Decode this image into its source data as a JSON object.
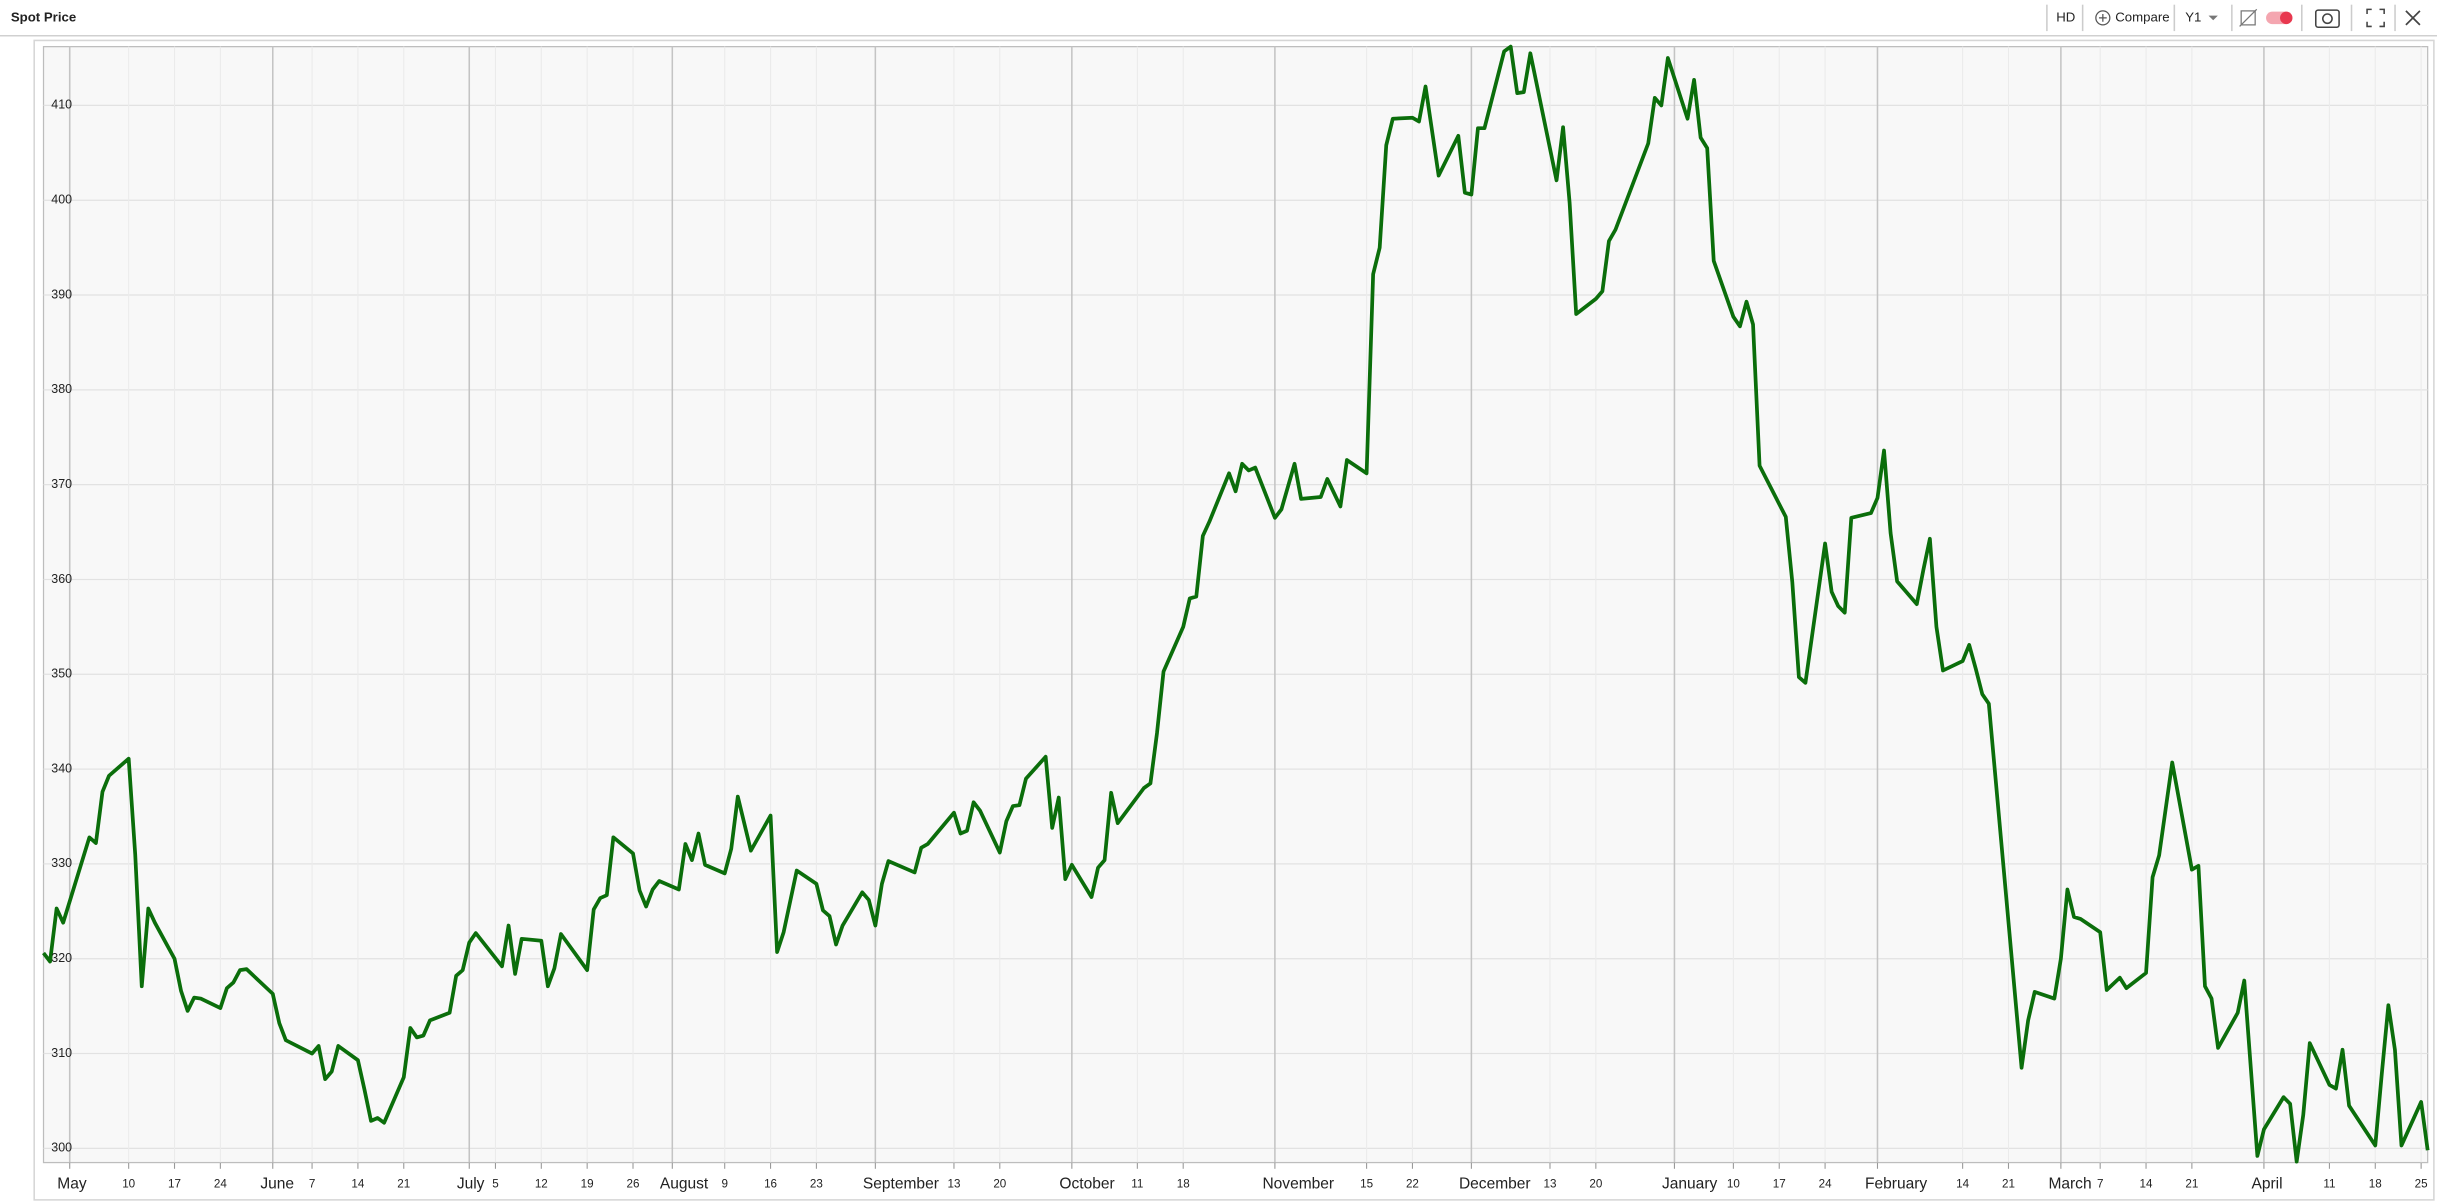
{
  "toolbar": {
    "hd": "HD",
    "compare": "Compare",
    "period": "Y1"
  },
  "chart_data": {
    "type": "line",
    "title": "Spot Price",
    "color": "#0b6e0b",
    "grid": true,
    "xlim": [
      "04-27",
      "04-26"
    ],
    "ylim": [
      298.5,
      416.2
    ],
    "yticks": [
      300,
      310,
      320,
      330,
      340,
      350,
      360,
      370,
      380,
      390,
      400,
      410
    ],
    "xticks": [
      {
        "value": "05-01",
        "label": "May"
      },
      {
        "value": "05-10",
        "label": "10"
      },
      {
        "value": "05-17",
        "label": "17"
      },
      {
        "value": "05-24",
        "label": "24"
      },
      {
        "value": "06-01",
        "label": "June"
      },
      {
        "value": "06-07",
        "label": "7"
      },
      {
        "value": "06-14",
        "label": "14"
      },
      {
        "value": "06-21",
        "label": "21"
      },
      {
        "value": "07-01",
        "label": "July"
      },
      {
        "value": "07-05",
        "label": "5"
      },
      {
        "value": "07-12",
        "label": "12"
      },
      {
        "value": "07-19",
        "label": "19"
      },
      {
        "value": "07-26",
        "label": "26"
      },
      {
        "value": "08-01",
        "label": "August"
      },
      {
        "value": "08-09",
        "label": "9"
      },
      {
        "value": "08-16",
        "label": "16"
      },
      {
        "value": "08-23",
        "label": "23"
      },
      {
        "value": "09-01",
        "label": "September"
      },
      {
        "value": "09-13",
        "label": "13"
      },
      {
        "value": "09-20",
        "label": "20"
      },
      {
        "value": "10-01",
        "label": "October"
      },
      {
        "value": "10-11",
        "label": "11"
      },
      {
        "value": "10-18",
        "label": "18"
      },
      {
        "value": "11-01",
        "label": "November"
      },
      {
        "value": "11-15",
        "label": "15"
      },
      {
        "value": "11-22",
        "label": "22"
      },
      {
        "value": "12-01",
        "label": "December"
      },
      {
        "value": "12-13",
        "label": "13"
      },
      {
        "value": "12-20",
        "label": "20"
      },
      {
        "value": "01-01",
        "label": "January"
      },
      {
        "value": "01-10",
        "label": "10"
      },
      {
        "value": "01-17",
        "label": "17"
      },
      {
        "value": "01-24",
        "label": "24"
      },
      {
        "value": "02-01",
        "label": "February"
      },
      {
        "value": "02-14",
        "label": "14"
      },
      {
        "value": "02-21",
        "label": "21"
      },
      {
        "value": "03-01",
        "label": "March"
      },
      {
        "value": "03-07",
        "label": "7"
      },
      {
        "value": "03-14",
        "label": "14"
      },
      {
        "value": "03-21",
        "label": "21"
      },
      {
        "value": "04-01",
        "label": "April"
      },
      {
        "value": "04-11",
        "label": "11"
      },
      {
        "value": "04-18",
        "label": "18"
      },
      {
        "value": "04-25",
        "label": "25"
      }
    ],
    "x": [
      "04-27",
      "04-28",
      "04-29",
      "04-30",
      "05-04",
      "05-05",
      "05-06",
      "05-07",
      "05-10",
      "05-11",
      "05-12",
      "05-13",
      "05-14",
      "05-17",
      "05-18",
      "05-19",
      "05-20",
      "05-21",
      "05-24",
      "05-25",
      "05-26",
      "05-27",
      "05-28",
      "06-01",
      "06-02",
      "06-03",
      "06-07",
      "06-08",
      "06-09",
      "06-10",
      "06-11",
      "06-14",
      "06-15",
      "06-16",
      "06-17",
      "06-18",
      "06-21",
      "06-22",
      "06-23",
      "06-24",
      "06-25",
      "06-28",
      "06-29",
      "06-30",
      "07-01",
      "07-02",
      "07-06",
      "07-07",
      "07-08",
      "07-09",
      "07-12",
      "07-13",
      "07-14",
      "07-15",
      "07-19",
      "07-20",
      "07-21",
      "07-22",
      "07-23",
      "07-26",
      "07-27",
      "07-28",
      "07-29",
      "07-30",
      "08-02",
      "08-03",
      "08-04",
      "08-05",
      "08-06",
      "08-09",
      "08-10",
      "08-11",
      "08-13",
      "08-16",
      "08-17",
      "08-18",
      "08-20",
      "08-23",
      "08-24",
      "08-25",
      "08-26",
      "08-27",
      "08-30",
      "08-31",
      "09-01",
      "09-02",
      "09-03",
      "09-07",
      "09-08",
      "09-09",
      "09-13",
      "09-14",
      "09-15",
      "09-16",
      "09-17",
      "09-20",
      "09-21",
      "09-22",
      "09-23",
      "09-24",
      "09-27",
      "09-28",
      "09-29",
      "09-30",
      "10-01",
      "10-04",
      "10-05",
      "10-06",
      "10-07",
      "10-08",
      "10-12",
      "10-13",
      "10-14",
      "10-15",
      "10-18",
      "10-19",
      "10-20",
      "10-21",
      "10-22",
      "10-25",
      "10-26",
      "10-27",
      "10-28",
      "10-29",
      "11-01",
      "11-02",
      "11-04",
      "11-05",
      "11-08",
      "11-09",
      "11-11",
      "11-12",
      "11-15",
      "11-16",
      "11-17",
      "11-18",
      "11-19",
      "11-22",
      "11-23",
      "11-24",
      "11-26",
      "11-29",
      "11-30",
      "12-01",
      "12-02",
      "12-03",
      "12-06",
      "12-07",
      "12-08",
      "12-09",
      "12-10",
      "12-14",
      "12-15",
      "12-16",
      "12-17",
      "12-20",
      "12-21",
      "12-22",
      "12-23",
      "12-28",
      "12-29",
      "12-30",
      "12-31",
      "01-03",
      "01-04",
      "01-05",
      "01-06",
      "01-07",
      "01-10",
      "01-11",
      "01-12",
      "01-13",
      "01-14",
      "01-18",
      "01-19",
      "01-20",
      "01-21",
      "01-24",
      "01-25",
      "01-26",
      "01-27",
      "01-28",
      "01-31",
      "02-01",
      "02-02",
      "02-03",
      "02-04",
      "02-07",
      "02-08",
      "02-09",
      "02-10",
      "02-11",
      "02-14",
      "02-15",
      "02-16",
      "02-17",
      "02-18",
      "02-23",
      "02-24",
      "02-25",
      "02-28",
      "03-01",
      "03-02",
      "03-03",
      "03-04",
      "03-07",
      "03-08",
      "03-10",
      "03-11",
      "03-14",
      "03-15",
      "03-16",
      "03-17",
      "03-18",
      "03-21",
      "03-22",
      "03-23",
      "03-24",
      "03-25",
      "03-28",
      "03-29",
      "03-31",
      "04-01",
      "04-04",
      "04-05",
      "04-06",
      "04-07",
      "04-08",
      "04-11",
      "04-12",
      "04-13",
      "04-14",
      "04-18",
      "04-19",
      "04-20",
      "04-21",
      "04-22",
      "04-25",
      "04-26"
    ],
    "values": [
      320.6,
      319.7,
      325.3,
      323.8,
      332.8,
      332.2,
      337.6,
      339.3,
      341.1,
      331,
      317.1,
      325.3,
      323.8,
      320,
      316.6,
      314.5,
      315.9,
      315.8,
      314.8,
      316.9,
      317.5,
      318.8,
      318.9,
      316.3,
      313.2,
      311.4,
      310,
      310.8,
      307.3,
      308.1,
      310.8,
      309.3,
      306.2,
      302.9,
      303.2,
      302.7,
      307.5,
      312.7,
      311.7,
      311.9,
      313.5,
      314.3,
      318.2,
      318.8,
      321.7,
      322.7,
      319.2,
      323.5,
      318.4,
      322.1,
      321.9,
      317.1,
      319,
      322.6,
      318.8,
      325.2,
      326.4,
      326.7,
      332.8,
      331.1,
      327.2,
      325.5,
      327.3,
      328.2,
      327.3,
      332.1,
      330.4,
      333.2,
      329.9,
      329,
      331.6,
      337.1,
      331.4,
      335.1,
      320.7,
      322.8,
      329.3,
      327.9,
      325.1,
      324.5,
      321.5,
      323.5,
      327,
      326.2,
      323.5,
      327.9,
      330.3,
      329.1,
      331.7,
      332.1,
      335.4,
      333.2,
      333.5,
      336.5,
      335.6,
      331.2,
      334.5,
      336.1,
      336.2,
      339,
      341.3,
      333.8,
      337,
      328.4,
      329.9,
      326.5,
      329.6,
      330.4,
      337.5,
      334.3,
      338,
      338.5,
      343.8,
      350.3,
      355,
      358,
      358.2,
      364.6,
      366.1,
      371.2,
      369.3,
      372.2,
      371.5,
      371.8,
      366.5,
      367.4,
      372.2,
      368.5,
      368.7,
      370.6,
      367.7,
      372.6,
      371.2,
      392.2,
      395,
      405.8,
      408.6,
      408.7,
      408.3,
      412,
      402.6,
      406.8,
      400.8,
      400.6,
      407.6,
      407.6,
      415.7,
      416.2,
      411.3,
      411.4,
      415.5,
      402.1,
      407.7,
      399.7,
      388,
      389.6,
      390.4,
      395.7,
      396.9,
      406,
      410.8,
      410,
      415,
      408.6,
      412.7,
      406.6,
      405.5,
      393.6,
      387.7,
      386.7,
      389.3,
      386.9,
      372,
      366.6,
      359.7,
      349.7,
      349.1,
      363.8,
      358.7,
      357.2,
      356.5,
      366.5,
      367,
      368.6,
      373.6,
      364.9,
      359.8,
      357.4,
      361,
      364.3,
      355,
      350.4,
      351.4,
      353.1,
      350.6,
      347.9,
      346.9,
      308.5,
      313.5,
      316.5,
      315.8,
      320,
      327.3,
      324.4,
      324.2,
      322.8,
      316.7,
      318,
      316.9,
      318.5,
      328.6,
      330.9,
      335.8,
      340.7,
      329.4,
      329.8,
      317.1,
      315.8,
      310.6,
      314.3,
      317.7,
      299.2,
      302,
      305.4,
      304.7,
      298.6,
      303.5,
      311.1,
      306.7,
      306.3,
      310.4,
      304.5,
      300.3,
      307.9,
      315.1,
      310.4,
      300.3,
      304.9,
      299.8
    ]
  }
}
